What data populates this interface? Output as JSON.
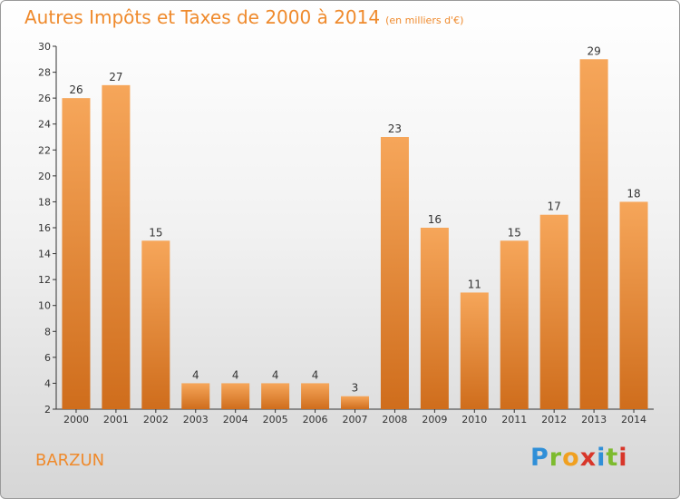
{
  "header": {
    "title": "Autres Impôts et Taxes de 2000 à 2014",
    "unit": "(en milliers d'€)"
  },
  "footer": {
    "commune": "BARZUN",
    "brand_letters": [
      "P",
      "r",
      "o",
      "x",
      "i",
      "t",
      "i"
    ],
    "brand_colors": [
      "#2f8fd8",
      "#7dbb2f",
      "#f0a020",
      "#d8362a",
      "#2f8fd8",
      "#7dbb2f",
      "#d8362a"
    ]
  },
  "colors": {
    "bar_light": "#f6a65a",
    "bar_dark": "#cf6d1c",
    "title": "#ef8a2c"
  },
  "chart_data": {
    "type": "bar",
    "title": "Autres Impôts et Taxes de 2000 à 2014",
    "subtitle": "(en milliers d'€)",
    "categories": [
      "2000",
      "2001",
      "2002",
      "2003",
      "2004",
      "2005",
      "2006",
      "2007",
      "2008",
      "2009",
      "2010",
      "2011",
      "2012",
      "2013",
      "2014"
    ],
    "values": [
      26,
      27,
      15,
      4,
      4,
      4,
      4,
      3,
      23,
      16,
      11,
      15,
      17,
      29,
      18
    ],
    "ylim": [
      2,
      30
    ],
    "yticks": [
      2,
      4,
      6,
      8,
      10,
      12,
      14,
      16,
      18,
      20,
      22,
      24,
      26,
      28,
      30
    ],
    "grid": false,
    "legend": "none"
  }
}
